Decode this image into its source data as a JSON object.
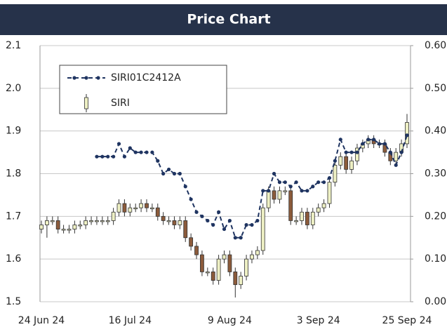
{
  "chart_data": {
    "type": "candlestick",
    "title": "Price Chart",
    "categories": [
      "24 Jun 24",
      null,
      null,
      null,
      null,
      null,
      null,
      null,
      null,
      null,
      null,
      null,
      null,
      null,
      null,
      null,
      "16 Jul 24",
      null,
      null,
      null,
      null,
      null,
      null,
      null,
      null,
      null,
      null,
      null,
      null,
      null,
      null,
      null,
      null,
      null,
      "9 Aug 24",
      null,
      null,
      null,
      null,
      null,
      null,
      null,
      null,
      null,
      null,
      null,
      null,
      null,
      null,
      null,
      "3 Sep 24",
      null,
      null,
      null,
      null,
      null,
      null,
      null,
      null,
      null,
      null,
      null,
      null,
      null,
      null,
      null,
      "25 Sep 24"
    ],
    "ylim": [
      1.5,
      2.1
    ],
    "yticks": [
      1.5,
      1.6,
      1.7,
      1.8,
      1.9,
      {
        "value": 2,
        "label": "2.0"
      },
      2.1
    ],
    "y2lim": [
      0,
      0.6
    ],
    "y2ticks": [
      {
        "value": 0,
        "label": "0.00"
      },
      {
        "value": 0.1,
        "label": "0.10"
      },
      {
        "value": 0.2,
        "label": "0.20"
      },
      {
        "value": 0.3,
        "label": "0.30"
      },
      {
        "value": 0.4,
        "label": "0.40"
      },
      {
        "value": 0.5,
        "label": "0.50"
      },
      {
        "value": 0.6,
        "label": "0.60"
      }
    ],
    "grid": true,
    "legend": "top-left",
    "series": [
      {
        "name": "SIRI01C2412A",
        "type": "line",
        "axis": "y2",
        "color": "#1f3461",
        "values": [
          null,
          null,
          null,
          null,
          null,
          null,
          null,
          null,
          null,
          null,
          0.34,
          0.34,
          0.34,
          0.34,
          0.37,
          0.34,
          0.36,
          0.35,
          0.35,
          0.35,
          0.35,
          0.33,
          0.3,
          0.31,
          0.3,
          0.3,
          0.27,
          0.24,
          0.21,
          0.2,
          0.19,
          0.18,
          0.21,
          0.17,
          0.19,
          0.15,
          0.15,
          0.18,
          0.18,
          0.19,
          0.26,
          0.26,
          0.3,
          0.28,
          0.28,
          0.27,
          0.28,
          0.26,
          0.26,
          0.27,
          0.28,
          0.28,
          0.29,
          0.33,
          0.38,
          0.35,
          0.35,
          0.35,
          0.37,
          0.38,
          0.38,
          0.37,
          0.37,
          0.35,
          0.32,
          0.35,
          0.39
        ]
      },
      {
        "name": "SIRI",
        "type": "candlestick",
        "up_color": "#eef0c4",
        "down_color": "#8c5b3b",
        "open": [
          1.67,
          1.68,
          1.69,
          1.69,
          1.67,
          1.67,
          1.67,
          1.68,
          1.68,
          1.69,
          1.69,
          1.69,
          1.69,
          1.69,
          1.71,
          1.73,
          1.71,
          1.72,
          1.72,
          1.73,
          1.72,
          1.72,
          1.7,
          1.69,
          1.69,
          1.68,
          1.69,
          1.65,
          1.63,
          1.61,
          1.57,
          1.57,
          1.55,
          1.6,
          1.61,
          1.57,
          1.54,
          1.56,
          1.6,
          1.61,
          1.62,
          1.72,
          1.76,
          1.74,
          1.76,
          1.76,
          1.69,
          1.69,
          1.71,
          1.68,
          1.71,
          1.72,
          1.73,
          1.78,
          1.82,
          1.84,
          1.81,
          1.83,
          1.86,
          1.87,
          1.88,
          1.87,
          1.87,
          1.85,
          1.83,
          1.85,
          1.87
        ],
        "high": [
          1.69,
          1.7,
          1.7,
          1.7,
          1.68,
          1.68,
          1.69,
          1.69,
          1.7,
          1.7,
          1.7,
          1.7,
          1.7,
          1.72,
          1.74,
          1.74,
          1.73,
          1.73,
          1.74,
          1.74,
          1.73,
          1.73,
          1.71,
          1.7,
          1.7,
          1.7,
          1.7,
          1.66,
          1.64,
          1.62,
          1.58,
          1.58,
          1.61,
          1.62,
          1.62,
          1.58,
          1.57,
          1.61,
          1.62,
          1.63,
          1.73,
          1.77,
          1.77,
          1.77,
          1.77,
          1.77,
          1.7,
          1.72,
          1.72,
          1.72,
          1.73,
          1.74,
          1.79,
          1.83,
          1.85,
          1.85,
          1.84,
          1.87,
          1.88,
          1.89,
          1.89,
          1.88,
          1.88,
          1.86,
          1.86,
          1.88,
          1.94
        ],
        "low": [
          1.66,
          1.65,
          1.68,
          1.66,
          1.66,
          1.66,
          1.66,
          1.67,
          1.67,
          1.68,
          1.68,
          1.68,
          1.68,
          1.68,
          1.7,
          1.7,
          1.7,
          1.71,
          1.71,
          1.71,
          1.71,
          1.69,
          1.68,
          1.68,
          1.67,
          1.67,
          1.64,
          1.62,
          1.6,
          1.56,
          1.56,
          1.54,
          1.54,
          1.59,
          1.56,
          1.51,
          1.53,
          1.55,
          1.59,
          1.6,
          1.61,
          1.71,
          1.73,
          1.73,
          1.75,
          1.68,
          1.68,
          1.68,
          1.67,
          1.67,
          1.7,
          1.71,
          1.72,
          1.77,
          1.81,
          1.8,
          1.8,
          1.82,
          1.85,
          1.86,
          1.86,
          1.86,
          1.84,
          1.82,
          1.82,
          1.84,
          1.86
        ],
        "close": [
          1.68,
          1.69,
          1.69,
          1.67,
          1.67,
          1.67,
          1.68,
          1.68,
          1.69,
          1.69,
          1.69,
          1.69,
          1.69,
          1.71,
          1.73,
          1.71,
          1.72,
          1.72,
          1.73,
          1.72,
          1.72,
          1.7,
          1.69,
          1.69,
          1.68,
          1.69,
          1.65,
          1.63,
          1.61,
          1.57,
          1.57,
          1.55,
          1.6,
          1.61,
          1.57,
          1.54,
          1.56,
          1.6,
          1.61,
          1.62,
          1.72,
          1.76,
          1.74,
          1.76,
          1.76,
          1.69,
          1.69,
          1.71,
          1.68,
          1.71,
          1.72,
          1.73,
          1.78,
          1.82,
          1.84,
          1.81,
          1.83,
          1.86,
          1.87,
          1.88,
          1.87,
          1.87,
          1.85,
          1.83,
          1.85,
          1.87,
          1.92
        ]
      }
    ]
  }
}
